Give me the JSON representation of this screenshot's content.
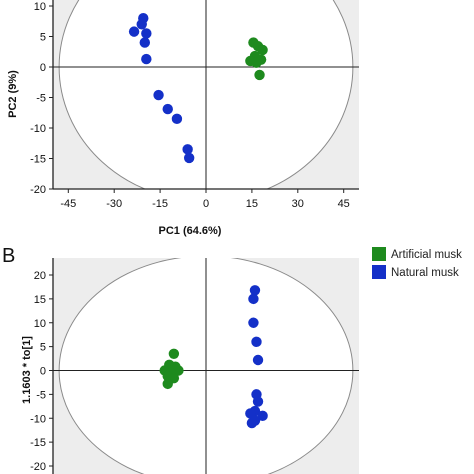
{
  "chart_data": [
    {
      "type": "scatter",
      "panel": "",
      "xlabel": "PC1 (64.6%)",
      "ylabel": "PC2 (9%)",
      "xlim": [
        -50,
        50
      ],
      "ylim": [
        -20,
        10
      ],
      "xticks": [
        "-45",
        "-30",
        "-15",
        "0",
        "15",
        "30",
        "45"
      ],
      "yticks": [
        "10",
        "5",
        "0",
        "-5",
        "-10",
        "-15",
        "-20"
      ],
      "xtick_values": [
        -45,
        -30,
        -15,
        0,
        15,
        30,
        45
      ],
      "ytick_values": [
        10,
        5,
        0,
        -5,
        -10,
        -15,
        -20
      ],
      "grid": false,
      "legend": "none",
      "ellipse": {
        "center": [
          0,
          0
        ],
        "radii": [
          48,
          22
        ]
      },
      "series": [
        {
          "name": "Artificial musk",
          "color": "#1e8a1e",
          "points": [
            [
              15.5,
              4.0
            ],
            [
              17.0,
              3.4
            ],
            [
              18.5,
              2.8
            ],
            [
              16.0,
              1.8
            ],
            [
              14.5,
              1.0
            ],
            [
              16.5,
              0.7
            ],
            [
              18.0,
              1.2
            ],
            [
              17.5,
              -1.3
            ]
          ]
        },
        {
          "name": "Natural musk",
          "color": "#1430c8",
          "points": [
            [
              -20.5,
              8.0
            ],
            [
              -21.0,
              7.0
            ],
            [
              -23.5,
              5.8
            ],
            [
              -19.5,
              5.5
            ],
            [
              -20.0,
              4.0
            ],
            [
              -19.5,
              1.3
            ],
            [
              -15.5,
              -4.6
            ],
            [
              -12.5,
              -6.9
            ],
            [
              -9.5,
              -8.5
            ],
            [
              -6.0,
              -13.5
            ],
            [
              -5.5,
              -14.9
            ]
          ]
        }
      ]
    },
    {
      "type": "scatter",
      "panel": "B",
      "xlabel": "",
      "ylabel": "1.1603 * to[1]",
      "xlim": [
        -50,
        50
      ],
      "ylim": [
        -20,
        20
      ],
      "yticks": [
        "20",
        "15",
        "10",
        "5",
        "0",
        "-5",
        "-10",
        "-15",
        "-20"
      ],
      "ytick_values": [
        20,
        15,
        10,
        5,
        0,
        -5,
        -10,
        -15,
        -20
      ],
      "grid": false,
      "legend": "top-right",
      "ellipse": {
        "center": [
          0,
          0
        ],
        "radii": [
          48,
          24
        ]
      },
      "series": [
        {
          "name": "Artificial musk",
          "color": "#1e8a1e",
          "points": [
            [
              -10.5,
              3.5
            ],
            [
              -12.0,
              1.2
            ],
            [
              -10.0,
              0.8
            ],
            [
              -13.5,
              0.0
            ],
            [
              -9.0,
              0.0
            ],
            [
              -11.5,
              -0.5
            ],
            [
              -12.5,
              -1.2
            ],
            [
              -10.5,
              -1.6
            ],
            [
              -12.5,
              -2.8
            ]
          ]
        },
        {
          "name": "Natural musk",
          "color": "#1430c8",
          "points": [
            [
              16.0,
              16.8
            ],
            [
              15.5,
              15.0
            ],
            [
              15.5,
              10.0
            ],
            [
              16.5,
              6.0
            ],
            [
              17.0,
              2.2
            ],
            [
              16.5,
              -5.0
            ],
            [
              17.0,
              -6.5
            ],
            [
              16.0,
              -8.5
            ],
            [
              14.5,
              -9.0
            ],
            [
              18.5,
              -9.5
            ],
            [
              16.0,
              -10.5
            ],
            [
              15.0,
              -11.0
            ]
          ]
        }
      ]
    }
  ],
  "legend": {
    "items": [
      {
        "label": "Artificial musk",
        "color": "#1e8a1e"
      },
      {
        "label": "Natural musk",
        "color": "#1430c8"
      }
    ]
  }
}
